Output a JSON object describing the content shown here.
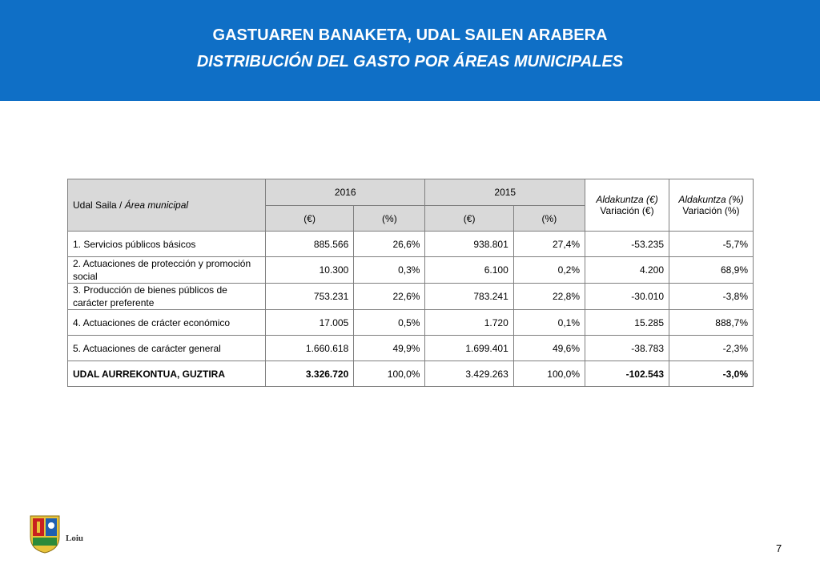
{
  "header": {
    "title_eu": "GASTUAREN BANAKETA, UDAL SAILEN ARABERA",
    "title_es": "DISTRIBUCIÓN DEL GASTO POR ÁREAS MUNICIPALES",
    "color": "#0f6fc6"
  },
  "table": {
    "area_header_eu": "Udal Saila / ",
    "area_header_es": "Área municipal",
    "year_2016": "2016",
    "year_2015": "2015",
    "unit_eur": "(€)",
    "unit_pct": "(%)",
    "var_eur_eu": "Aldakuntza (€)",
    "var_eur_es": "Variación (€)",
    "var_pct_eu": "Aldakuntza (%)",
    "var_pct_es": "Variación (%)",
    "rows": [
      {
        "area": "1. Servicios públicos básicos",
        "e2016": "885.566",
        "p2016": "26,6%",
        "e2015": "938.801",
        "p2015": "27,4%",
        "var_eur": "-53.235",
        "var_pct": "-5,7%"
      },
      {
        "area": "2. Actuaciones de protección y promoción social",
        "e2016": "10.300",
        "p2016": "0,3%",
        "e2015": "6.100",
        "p2015": "0,2%",
        "var_eur": "4.200",
        "var_pct": "68,9%"
      },
      {
        "area": "3. Producción de bienes públicos de carácter preferente",
        "e2016": "753.231",
        "p2016": "22,6%",
        "e2015": "783.241",
        "p2015": "22,8%",
        "var_eur": "-30.010",
        "var_pct": "-3,8%"
      },
      {
        "area": "4. Actuaciones de crácter económico",
        "e2016": "17.005",
        "p2016": "0,5%",
        "e2015": "1.720",
        "p2015": "0,1%",
        "var_eur": "15.285",
        "var_pct": "888,7%"
      },
      {
        "area": "5. Actuaciones de carácter general",
        "e2016": "1.660.618",
        "p2016": "49,9%",
        "e2015": "1.699.401",
        "p2015": "49,6%",
        "var_eur": "-38.783",
        "var_pct": "-2,3%"
      }
    ],
    "total": {
      "area": "UDAL AURREKONTUA, GUZTIRA",
      "e2016": "3.326.720",
      "p2016": "100,0%",
      "e2015": "3.429.263",
      "p2015": "100,0%",
      "var_eur": "-102.543",
      "var_pct": "-3,0%"
    }
  },
  "footer": {
    "logo_icon": "municipal-coat-of-arms",
    "logo_text": "Loiu",
    "page_number": "7"
  }
}
